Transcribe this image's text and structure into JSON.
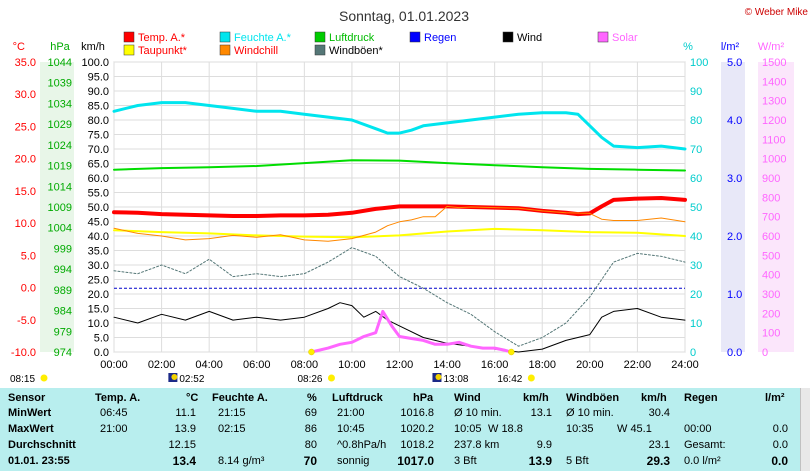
{
  "header": {
    "title": "Sonntag, 01.01.2023",
    "credit": "© Weber Mike"
  },
  "legend": [
    {
      "label": "Temp. A.*",
      "color": "#ff0000",
      "col": 0,
      "row": 0,
      "text_color": "#ff0000"
    },
    {
      "label": "Feuchte A.*",
      "color": "#00e5ee",
      "col": 1,
      "row": 0,
      "text_color": "#00e5ee"
    },
    {
      "label": "Luftdruck",
      "color": "#00cc00",
      "col": 2,
      "row": 0,
      "text_color": "#00bb00"
    },
    {
      "label": "Regen",
      "color": "#0000ff",
      "col": 3,
      "row": 0,
      "text_color": "#0000ff"
    },
    {
      "label": "Wind",
      "color": "#000000",
      "col": 4,
      "row": 0,
      "text_color": "#000000"
    },
    {
      "label": "Solar",
      "color": "#ff66ff",
      "col": 5,
      "row": 0,
      "text_color": "#ff66ff"
    },
    {
      "label": "Taupunkt*",
      "color": "#ffff00",
      "col": 0,
      "row": 1,
      "text_color": "#ff0000"
    },
    {
      "label": "Windchill",
      "color": "#ff8800",
      "col": 1,
      "row": 1,
      "text_color": "#ff0000"
    },
    {
      "label": "Windböen*",
      "color": "#557777",
      "col": 2,
      "row": 1,
      "text_color": "#000000"
    }
  ],
  "chart_data": {
    "type": "line",
    "x_ticks": [
      "00:00",
      "02:00",
      "04:00",
      "06:00",
      "08:00",
      "10:00",
      "12:00",
      "14:00",
      "16:00",
      "18:00",
      "20:00",
      "22:00",
      "24:00"
    ],
    "axes": {
      "celsius": {
        "unit": "°C",
        "ticks": [
          "35.0",
          "30.0",
          "25.0",
          "20.0",
          "15.0",
          "10.0",
          "5.0",
          "0.0",
          "-5.0",
          "-10.0"
        ],
        "range": [
          -10,
          35
        ],
        "color": "#ff0000"
      },
      "hpa": {
        "unit": "hPa",
        "ticks": [
          "1044",
          "1039",
          "1034",
          "1029",
          "1024",
          "1019",
          "1014",
          "1009",
          "1004",
          "999",
          "994",
          "989",
          "984",
          "979",
          "974"
        ],
        "range": [
          974,
          1044
        ],
        "color": "#00aa00"
      },
      "kmh": {
        "unit": "km/h",
        "ticks": [
          "100.0",
          "95.0",
          "90.0",
          "85.0",
          "80.0",
          "75.0",
          "70.0",
          "65.0",
          "60.0",
          "55.0",
          "50.0",
          "45.0",
          "40.0",
          "35.0",
          "30.0",
          "25.0",
          "20.0",
          "15.0",
          "10.0",
          "5.0",
          "0.0"
        ],
        "range": [
          0,
          100
        ],
        "color": "#000000"
      },
      "percent": {
        "unit": "%",
        "ticks": [
          "100",
          "90",
          "80",
          "70",
          "60",
          "50",
          "40",
          "30",
          "20",
          "10",
          "0"
        ],
        "range": [
          0,
          100
        ],
        "color": "#00cccc"
      },
      "rain": {
        "unit": "l/m²",
        "ticks": [
          "5.0",
          "4.0",
          "3.0",
          "2.0",
          "1.0",
          "0.0"
        ],
        "range": [
          0,
          5
        ],
        "color": "#0000ff"
      },
      "solar": {
        "unit": "W/m²",
        "ticks": [
          "1500",
          "1400",
          "1300",
          "1200",
          "1100",
          "1000",
          "900",
          "800",
          "700",
          "600",
          "500",
          "400",
          "300",
          "200",
          "100",
          "0"
        ],
        "range": [
          0,
          1500
        ],
        "color": "#ff66ff"
      }
    },
    "series": [
      {
        "name": "Feuchte A.*",
        "axis": "percent",
        "color": "#00e5ee",
        "width": 3,
        "x": [
          0,
          1,
          2,
          3,
          4,
          5,
          6,
          7,
          8,
          9,
          10,
          11,
          11.5,
          12,
          12.5,
          13,
          14,
          15,
          16,
          17,
          18,
          19,
          19.5,
          20,
          20.5,
          21,
          22,
          23,
          24
        ],
        "y": [
          83,
          85,
          86,
          86,
          85,
          84,
          83,
          83,
          82,
          81,
          80,
          77,
          75.5,
          75.5,
          76.5,
          78,
          79,
          80,
          81,
          82,
          82.5,
          82.5,
          82,
          78,
          74,
          71,
          70.5,
          71,
          70
        ]
      },
      {
        "name": "Luftdruck",
        "axis": "hpa",
        "color": "#00dd00",
        "width": 2,
        "x": [
          0,
          2,
          4,
          6,
          8,
          10,
          12,
          14,
          16,
          18,
          20,
          22,
          24
        ],
        "y": [
          1018.0,
          1018.4,
          1018.6,
          1018.9,
          1019.6,
          1020.3,
          1020.2,
          1019.6,
          1019.1,
          1018.6,
          1018.2,
          1018.0,
          1017.8
        ]
      },
      {
        "name": "Temp. A.*",
        "axis": "celsius",
        "color": "#ff0000",
        "width": 4,
        "x": [
          0,
          1,
          2,
          3,
          4,
          5,
          6,
          7,
          8,
          9,
          10,
          11,
          12,
          13,
          14,
          15,
          16,
          17,
          18,
          19,
          19.5,
          20,
          20.5,
          21,
          22,
          23,
          24
        ],
        "y": [
          11.7,
          11.6,
          11.4,
          11.3,
          11.2,
          11.1,
          11.1,
          11.2,
          11.2,
          11.3,
          11.6,
          12.2,
          12.6,
          12.6,
          12.6,
          12.5,
          12.4,
          12.3,
          11.9,
          11.6,
          11.4,
          11.5,
          12.6,
          13.6,
          13.8,
          13.9,
          13.6
        ]
      },
      {
        "name": "Taupunkt*",
        "axis": "celsius",
        "color": "#ffff00",
        "width": 2,
        "x": [
          0,
          2,
          4,
          6,
          8,
          10,
          12,
          14,
          16,
          18,
          20,
          22,
          24
        ],
        "y": [
          8.9,
          8.6,
          8.4,
          8.1,
          7.9,
          7.8,
          8.1,
          8.7,
          9.1,
          8.9,
          8.6,
          8.5,
          8.0
        ]
      },
      {
        "name": "Windchill",
        "axis": "celsius",
        "color": "#ff8800",
        "width": 1,
        "x": [
          0,
          1,
          2,
          3,
          4,
          5,
          6,
          7,
          8,
          9,
          10,
          11,
          11.5,
          12,
          12.5,
          13,
          13.5,
          14,
          14.5,
          15,
          16,
          17,
          18,
          19,
          20,
          20.5,
          21,
          22,
          23,
          24
        ],
        "y": [
          9.2,
          8.4,
          8.0,
          7.4,
          7.6,
          8.1,
          7.8,
          8.2,
          7.4,
          7.2,
          7.6,
          8.6,
          9.6,
          10.2,
          10.5,
          11.0,
          11.0,
          12.6,
          12.4,
          12.5,
          12.4,
          12.3,
          11.9,
          11.6,
          11.5,
          10.6,
          10.4,
          10.4,
          10.8,
          10.2
        ]
      },
      {
        "name": "Windböen*",
        "axis": "kmh",
        "color": "#557777",
        "width": 1,
        "dashed": true,
        "x": [
          0,
          1,
          2,
          3,
          4,
          5,
          6,
          7,
          8,
          9,
          10,
          11,
          12,
          13,
          14,
          15,
          16,
          17,
          18,
          19,
          20,
          21,
          22,
          23,
          24
        ],
        "y": [
          28,
          27,
          30,
          27,
          32,
          26,
          27,
          26,
          27,
          31,
          36,
          33,
          26,
          22,
          17,
          13,
          7,
          2,
          5,
          10,
          19,
          31,
          34,
          33,
          31
        ]
      },
      {
        "name": "Wind",
        "axis": "kmh",
        "color": "#000000",
        "width": 1,
        "x": [
          0,
          1,
          2,
          3,
          4,
          5,
          6,
          7,
          8,
          9,
          9.5,
          10,
          10.5,
          11,
          11.5,
          12,
          13,
          13.5,
          14,
          15,
          16,
          17,
          18,
          19,
          20,
          20.5,
          21,
          22,
          23,
          24
        ],
        "y": [
          12,
          10,
          13,
          11,
          14,
          11,
          12,
          11,
          12,
          15,
          17,
          16,
          12,
          14,
          11,
          9,
          5,
          4,
          3,
          2,
          1,
          0,
          1,
          4,
          6,
          12,
          14,
          15,
          12,
          11
        ]
      },
      {
        "name": "Solar",
        "axis": "solar",
        "color": "#ff66ff",
        "width": 3,
        "x": [
          8.3,
          9,
          9.5,
          10,
          10.5,
          11,
          11.3,
          11.7,
          12,
          12.5,
          13,
          13.5,
          14,
          14.5,
          15,
          15.5,
          16,
          16.4,
          16.7
        ],
        "y": [
          0,
          20,
          40,
          50,
          80,
          100,
          210,
          130,
          80,
          70,
          60,
          40,
          40,
          50,
          30,
          20,
          20,
          10,
          0
        ]
      }
    ],
    "rain_reference": 1.1,
    "sun_events": [
      {
        "text": "08:15",
        "x_hours": 0,
        "type": "sunrise-label"
      },
      {
        "text": "02:52",
        "x_hours": 3.0,
        "type": "moon"
      },
      {
        "text": "08:26",
        "x_hours": 8.3,
        "type": "sun"
      },
      {
        "text": "13:08",
        "x_hours": 14.1,
        "type": "moon"
      },
      {
        "text": "16:42",
        "x_hours": 16.7,
        "type": "sun"
      }
    ]
  },
  "stats": {
    "headers": {
      "sensor": "Sensor",
      "temp": "Temp. A.",
      "temp_unit": "°C",
      "hum": "Feuchte A.",
      "hum_unit": "%",
      "press": "Luftdruck",
      "press_unit": "hPa",
      "wind": "Wind",
      "wind_unit": "km/h",
      "gust": "Windböen",
      "gust_unit": "km/h",
      "rain": "Regen",
      "rain_unit": "l/m²"
    },
    "rows": [
      {
        "label": "MinWert",
        "temp_time": "06:45",
        "temp_val": "11.1",
        "hum_time": "21:15",
        "hum_val": "69",
        "press_time": "21:00",
        "press_val": "1016.8",
        "wind_a": "Ø 10 min.",
        "wind_val": "13.1",
        "gust_a": "Ø 10 min.",
        "gust_val": "30.4",
        "rain_a": "",
        "rain_val": ""
      },
      {
        "label": "MaxWert",
        "temp_time": "21:00",
        "temp_val": "13.9",
        "hum_time": "02:15",
        "hum_val": "86",
        "press_time": "10:45",
        "press_val": "1020.2",
        "wind_a": "10:05",
        "wind_b": "W 18.8",
        "wind_val": "",
        "gust_a": "10:35",
        "gust_b": "W 45.1",
        "gust_val": "",
        "rain_a": "00:00",
        "rain_val": "0.0"
      },
      {
        "label": "Durchschnitt",
        "temp_time": "",
        "temp_val": "12.15",
        "hum_time": "",
        "hum_val": "80",
        "press_time": "^0.8hPa/h",
        "press_val": "1018.2",
        "wind_a": "237.8 km",
        "wind_val": "9.9",
        "gust_a": "",
        "gust_val": "23.1",
        "rain_a": "Gesamt:",
        "rain_val": "0.0"
      },
      {
        "label": "01.01. 23:55",
        "temp_time": "",
        "temp_val": "13.4",
        "hum_time": "8.14 g/m³",
        "hum_val": "70",
        "press_time": "sonnig",
        "press_val": "1017.0",
        "wind_a": "3 Bft",
        "wind_val": "13.9",
        "gust_a": "5 Bft",
        "gust_val": "29.3",
        "rain_a": "0.0 l/m²",
        "rain_val": "0.0"
      }
    ]
  }
}
